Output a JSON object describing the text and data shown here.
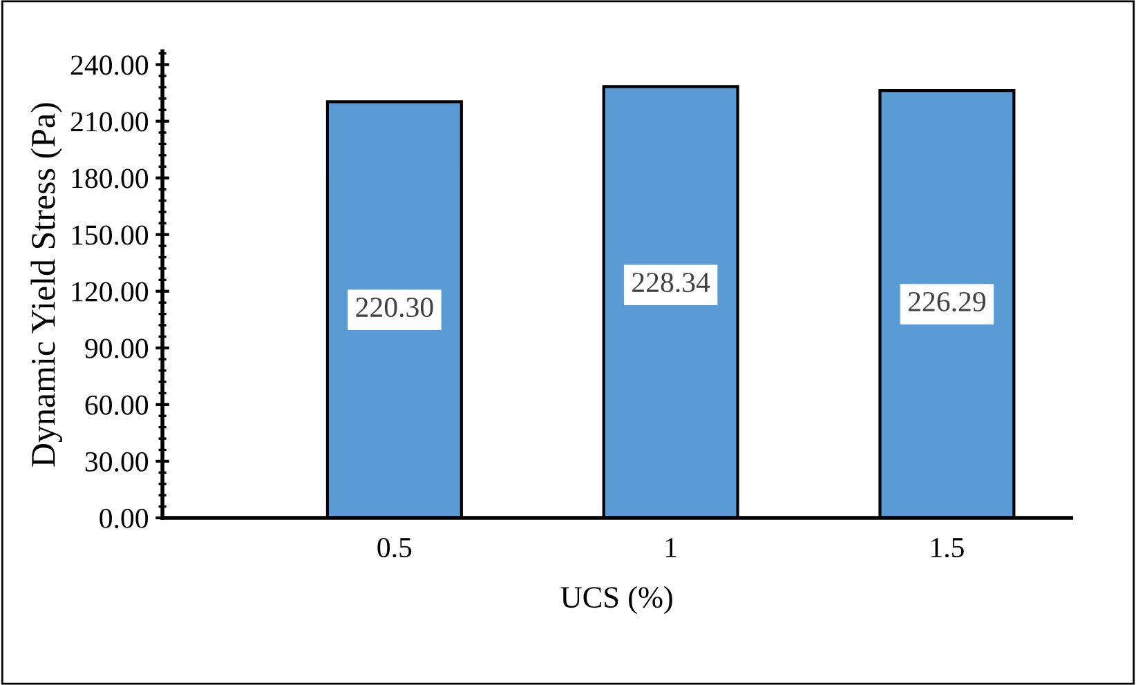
{
  "chart_data": {
    "type": "bar",
    "xlabel": "UCS (%)",
    "ylabel": "Dynamic Yield Stress (Pa)",
    "categories": [
      "0.5",
      "1",
      "1.5"
    ],
    "values": [
      220.3,
      228.34,
      226.29
    ],
    "value_labels": [
      "220.30",
      "228.34",
      "226.29"
    ],
    "color": "#5b9bd5",
    "ylim": [
      0,
      247
    ],
    "yticks": [
      {
        "value": 0,
        "label": "0.00"
      },
      {
        "value": 30,
        "label": "30.00"
      },
      {
        "value": 60,
        "label": "60.00"
      },
      {
        "value": 90,
        "label": "90.00"
      },
      {
        "value": 120,
        "label": "120.00"
      },
      {
        "value": 150,
        "label": "150.00"
      },
      {
        "value": 180,
        "label": "180.00"
      },
      {
        "value": 210,
        "label": "210.00"
      },
      {
        "value": 240,
        "label": "240.00"
      }
    ],
    "grid": false,
    "legend": false
  }
}
